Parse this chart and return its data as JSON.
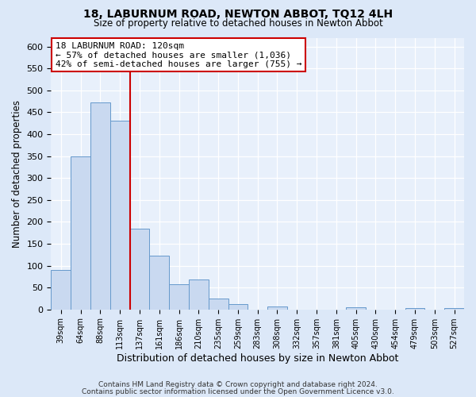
{
  "title": "18, LABURNUM ROAD, NEWTON ABBOT, TQ12 4LH",
  "subtitle": "Size of property relative to detached houses in Newton Abbot",
  "bar_labels": [
    "39sqm",
    "64sqm",
    "88sqm",
    "113sqm",
    "137sqm",
    "161sqm",
    "186sqm",
    "210sqm",
    "235sqm",
    "259sqm",
    "283sqm",
    "308sqm",
    "332sqm",
    "357sqm",
    "381sqm",
    "405sqm",
    "430sqm",
    "454sqm",
    "479sqm",
    "503sqm",
    "527sqm"
  ],
  "bar_values": [
    90,
    350,
    472,
    430,
    185,
    123,
    57,
    68,
    24,
    12,
    0,
    6,
    0,
    0,
    0,
    5,
    0,
    0,
    4,
    0,
    3
  ],
  "bar_color": "#c9d9f0",
  "bar_edge_color": "#6699cc",
  "ylim": [
    0,
    620
  ],
  "yticks": [
    0,
    50,
    100,
    150,
    200,
    250,
    300,
    350,
    400,
    450,
    500,
    550,
    600
  ],
  "ylabel": "Number of detached properties",
  "xlabel": "Distribution of detached houses by size in Newton Abbot",
  "vline_position": 3.5,
  "vline_color": "#cc0000",
  "annotation_title": "18 LABURNUM ROAD: 120sqm",
  "annotation_line1": "← 57% of detached houses are smaller (1,036)",
  "annotation_line2": "42% of semi-detached houses are larger (755) →",
  "annotation_box_color": "#cc0000",
  "footer1": "Contains HM Land Registry data © Crown copyright and database right 2024.",
  "footer2": "Contains public sector information licensed under the Open Government Licence v3.0.",
  "fig_bg_color": "#dce8f8",
  "plot_bg_color": "#e8f0fb"
}
